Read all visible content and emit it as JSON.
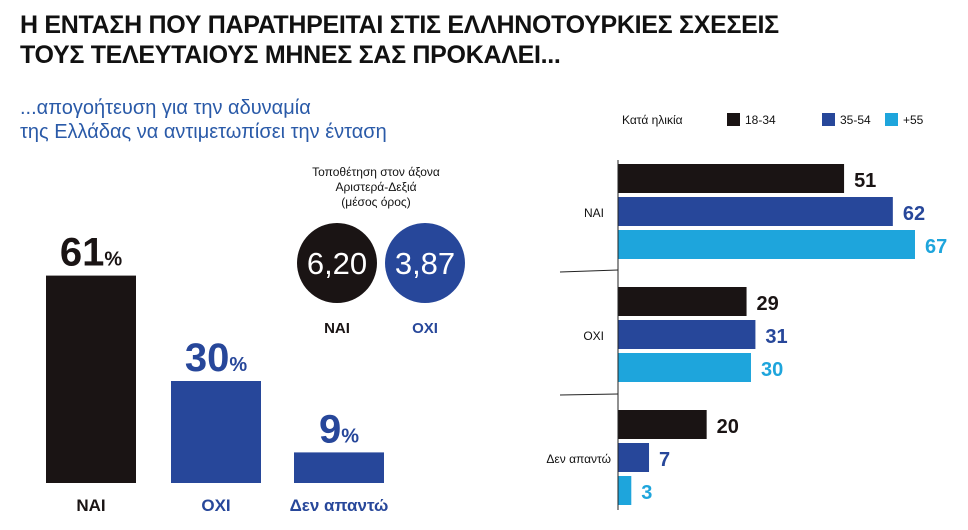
{
  "header": {
    "title_line1": "Η ΕΝΤΑΣΗ ΠΟΥ ΠΑΡΑΤΗΡΕΙΤΑΙ ΣΤΙΣ ΕΛΛΗΝΟΤΟΥΡΚΙΕΣ ΣΧΕΣΕΙΣ",
    "title_line2": "ΤΟΥΣ ΤΕΛΕΥΤΑΙΟΥΣ ΜΗΝΕΣ ΣΑΣ ΠΡΟΚΑΛΕΙ...",
    "subtitle_line1": "...απογοήτευση για την αδυναμία",
    "subtitle_line2": "της Ελλάδας να αντιμετωπίσει την ένταση"
  },
  "axis_placement": {
    "heading_line1": "Τοποθέτηση στον άξονα",
    "heading_line2": "Αριστερά-Δεξιά",
    "heading_line3": "(μέσος όρος)",
    "circles": [
      {
        "label": "ΝΑΙ",
        "value": "6,20",
        "color": "#1a1414"
      },
      {
        "label": "ΟΧΙ",
        "value": "3,87",
        "color": "#27479a"
      }
    ]
  },
  "chart_data": [
    {
      "type": "bar",
      "categories": [
        "ΝΑΙ",
        "ΟΧΙ",
        "Δεν απαντώ"
      ],
      "values": [
        61,
        30,
        9
      ],
      "unit": "%",
      "colors": [
        "#1a1414",
        "#27479a",
        "#27479a"
      ],
      "ylim": [
        0,
        100
      ]
    },
    {
      "type": "bar",
      "orientation": "horizontal",
      "legend_title": "Κατά ηλικία",
      "legend_position": "top",
      "categories": [
        "ΝΑΙ",
        "ΟΧΙ",
        "Δεν απαντώ"
      ],
      "series": [
        {
          "name": "18-34",
          "values": [
            51,
            29,
            20
          ],
          "color": "#1a1414"
        },
        {
          "name": "35-54",
          "values": [
            62,
            31,
            7
          ],
          "color": "#27479a"
        },
        {
          "name": "+55",
          "values": [
            67,
            30,
            3
          ],
          "color": "#1ea5dc"
        }
      ],
      "xlim": [
        0,
        67
      ]
    }
  ]
}
